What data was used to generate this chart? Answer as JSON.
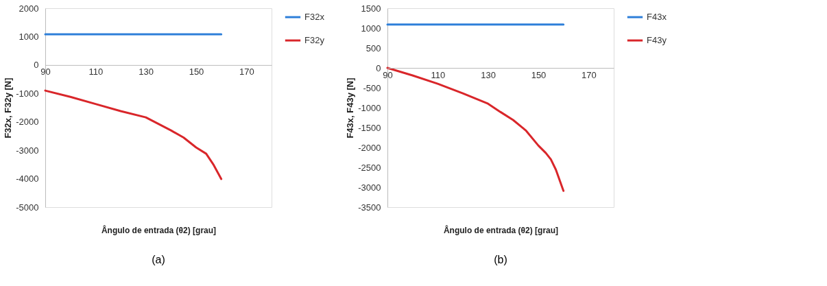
{
  "chart_data": [
    {
      "type": "line",
      "xlabel": "Ângulo de entrada (θ2) [grau]",
      "ylabel": "F32x, F32y [N]",
      "annotations": [
        "(a)"
      ],
      "xlim": [
        90,
        180
      ],
      "xticks": [
        90,
        110,
        130,
        150,
        170
      ],
      "ylim": [
        -5000,
        2000
      ],
      "yticks": [
        -5000,
        -4000,
        -3000,
        -2000,
        -1000,
        0,
        1000,
        2000
      ],
      "grid": false,
      "legend": "right",
      "line_style": "solid",
      "series": [
        {
          "name": "F32x",
          "color": "#2e7fd9",
          "x": [
            90,
            160
          ],
          "values": [
            1080,
            1080
          ]
        },
        {
          "name": "F32y",
          "color": "#d9262a",
          "x": [
            90,
            100,
            110,
            120,
            130,
            135,
            140,
            145,
            150,
            154,
            157,
            160
          ],
          "values": [
            -900,
            -1120,
            -1370,
            -1620,
            -1840,
            -2070,
            -2300,
            -2550,
            -2900,
            -3120,
            -3520,
            -4010
          ]
        }
      ]
    },
    {
      "type": "line",
      "xlabel": "Ângulo de entrada (θ2) [grau]",
      "ylabel": "F43x, F43y [N]",
      "annotations": [
        "(b)"
      ],
      "xlim": [
        90,
        180
      ],
      "xticks": [
        90,
        110,
        130,
        150,
        170
      ],
      "ylim": [
        -3500,
        1500
      ],
      "yticks": [
        -3500,
        -3000,
        -2500,
        -2000,
        -1500,
        -1000,
        -500,
        0,
        500,
        1000,
        1500
      ],
      "grid": false,
      "legend": "right",
      "line_style": "solid",
      "series": [
        {
          "name": "F43x",
          "color": "#2e7fd9",
          "x": [
            90,
            160
          ],
          "values": [
            1090,
            1090
          ]
        },
        {
          "name": "F43y",
          "color": "#d9262a",
          "x": [
            90,
            100,
            110,
            120,
            130,
            135,
            140,
            145,
            150,
            153,
            155,
            157,
            160
          ],
          "values": [
            0,
            -190,
            -400,
            -640,
            -900,
            -1110,
            -1310,
            -1570,
            -1950,
            -2140,
            -2300,
            -2560,
            -3090
          ]
        }
      ]
    }
  ]
}
